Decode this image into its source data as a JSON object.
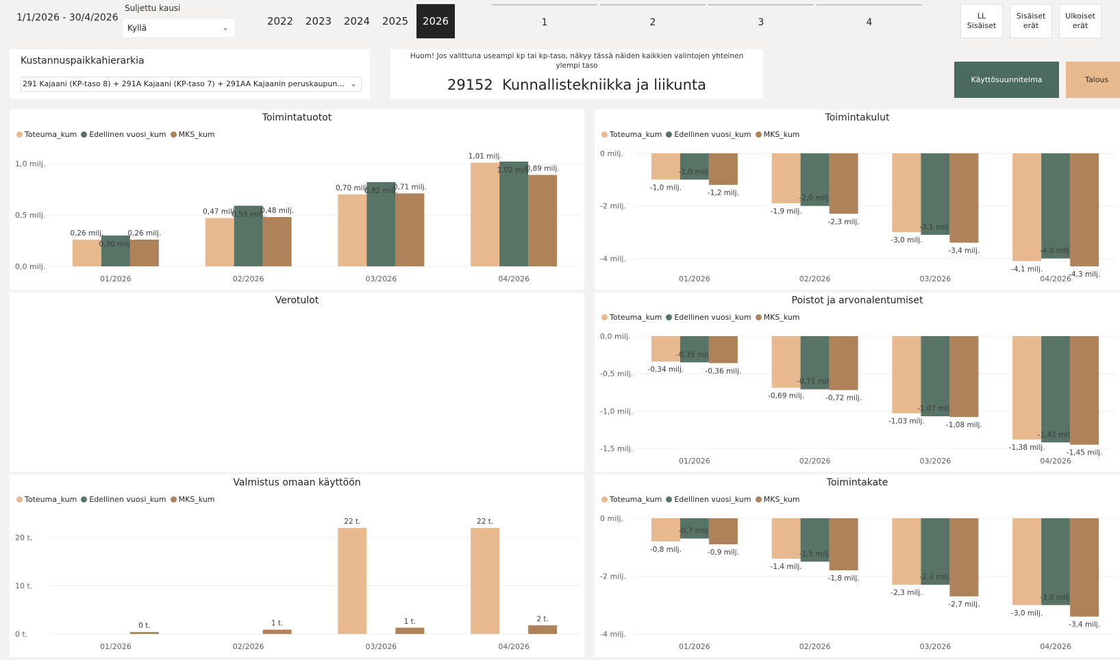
{
  "filters": {
    "date_range": "1/1/2026 - 30/4/2026",
    "closed_period_label": "Suljettu kausi",
    "closed_period_value": "Kyllä",
    "years": [
      {
        "label": "2022",
        "active": false
      },
      {
        "label": "2023",
        "active": false
      },
      {
        "label": "2024",
        "active": false
      },
      {
        "label": "2025",
        "active": false
      },
      {
        "label": "2026",
        "active": true
      }
    ],
    "quarters": [
      "1",
      "2",
      "3",
      "4"
    ],
    "entry_buttons": [
      {
        "l1": "LL",
        "l2": "Sisäiset"
      },
      {
        "l1": "Sisäiset",
        "l2": "erät"
      },
      {
        "l1": "Ulkoiset",
        "l2": "erät"
      }
    ]
  },
  "hierarchy": {
    "title": "Kustannuspaikkahierarkia",
    "value": "291 Kajaani (KP-taso 8) + 291A Kajaani (KP-taso 7) + 291AA Kajaanin peruskaupun..."
  },
  "notice": {
    "text": "Huom! Jos valittuna useampi kp tai kp-taso, näkyy tässä näiden kaikkien valintojen yhteinen ylempi taso",
    "unit_code": "29152",
    "unit_name": "Kunnallistekniikka ja liikunta"
  },
  "nav_buttons": {
    "primary": "Käyttösuunnitelma",
    "secondary": "Talous"
  },
  "legend": [
    {
      "name": "Toteuma_kum",
      "color": "#e8b98e"
    },
    {
      "name": "Edellinen vuosi_kum",
      "color": "#587466"
    },
    {
      "name": "MKS_kum",
      "color": "#b0825a"
    }
  ],
  "panels": {
    "toimintatuotot": "Toimintatuotot",
    "verotulot": "Verotulot",
    "valmistus": "Valmistus omaan käyttöön",
    "toimintakulut": "Toimintakulut",
    "poistot": "Poistot ja arvonalentumiset",
    "toimintakate": "Toimintakate"
  },
  "chart_data": [
    {
      "id": "toimintatuotot",
      "type": "bar",
      "title": "Toimintatuotot",
      "categories": [
        "01/2026",
        "02/2026",
        "03/2026",
        "04/2026"
      ],
      "ylim": [
        0,
        1.1
      ],
      "yticks": [
        {
          "v": 0,
          "label": "0,0 milj."
        },
        {
          "v": 0.5,
          "label": "0,5 milj."
        },
        {
          "v": 1.0,
          "label": "1,0 milj."
        }
      ],
      "series": [
        {
          "name": "Toteuma_kum",
          "values": [
            0.26,
            0.47,
            0.7,
            1.01
          ],
          "labels": [
            "0,26 milj.",
            "0,47 milj.",
            "0,70 milj.",
            "1,01 milj."
          ]
        },
        {
          "name": "Edellinen vuosi_kum",
          "values": [
            0.3,
            0.59,
            0.82,
            1.02
          ],
          "labels": [
            "0,30 milj.",
            "0,59 milj.",
            "0,82 milj.",
            "1,02 milj."
          ]
        },
        {
          "name": "MKS_kum",
          "values": [
            0.26,
            0.48,
            0.71,
            0.89
          ],
          "labels": [
            "0,26 milj.",
            "0,48 milj.",
            "0,71 milj.",
            "0,89 milj."
          ]
        }
      ]
    },
    {
      "id": "toimintakulut",
      "type": "bar",
      "title": "Toimintakulut",
      "categories": [
        "01/2026",
        "02/2026",
        "03/2026",
        "04/2026"
      ],
      "ylim": [
        0,
        -4.3
      ],
      "yticks": [
        {
          "v": 0,
          "label": "0 milj."
        },
        {
          "v": -2,
          "label": "-2 milj."
        },
        {
          "v": -4,
          "label": "-4 milj."
        }
      ],
      "series": [
        {
          "name": "Toteuma_kum",
          "values": [
            -1.0,
            -1.9,
            -3.0,
            -4.1
          ],
          "labels": [
            "-1,0 milj.",
            "-1,9 milj.",
            "-3,0 milj.",
            "-4,1 milj."
          ]
        },
        {
          "name": "Edellinen vuosi_kum",
          "values": [
            -1.0,
            -2.0,
            -3.1,
            -4.0
          ],
          "labels": [
            "-1,0 milj.",
            "-2,0 milj.",
            "-3,1 milj.",
            "-4,0 milj."
          ]
        },
        {
          "name": "MKS_kum",
          "values": [
            -1.2,
            -2.3,
            -3.4,
            -4.3
          ],
          "labels": [
            "-1,2 milj.",
            "-2,3 milj.",
            "-3,4 milj.",
            "-4,3 milj."
          ]
        }
      ]
    },
    {
      "id": "poistot",
      "type": "bar",
      "title": "Poistot ja arvonalentumiset",
      "categories": [
        "01/2026",
        "02/2026",
        "03/2026",
        "04/2026"
      ],
      "ylim": [
        0,
        -1.5
      ],
      "yticks": [
        {
          "v": 0,
          "label": "0,0 milj."
        },
        {
          "v": -0.5,
          "label": "-0,5 milj."
        },
        {
          "v": -1.0,
          "label": "-1,0 milj."
        },
        {
          "v": -1.5,
          "label": "-1,5 milj."
        }
      ],
      "series": [
        {
          "name": "Toteuma_kum",
          "values": [
            -0.34,
            -0.69,
            -1.03,
            -1.38
          ],
          "labels": [
            "-0,34 milj.",
            "-0,69 milj.",
            "-1,03 milj.",
            "-1,38 milj."
          ]
        },
        {
          "name": "Edellinen vuosi_kum",
          "values": [
            -0.35,
            -0.71,
            -1.07,
            -1.42
          ],
          "labels": [
            "-0,35 milj.",
            "-0,71 milj.",
            "-1,07 milj.",
            "-1,42 milj."
          ]
        },
        {
          "name": "MKS_kum",
          "values": [
            -0.36,
            -0.72,
            -1.08,
            -1.45
          ],
          "labels": [
            "-0,36 milj.",
            "-0,72 milj.",
            "-1,08 milj.",
            "-1,45 milj."
          ]
        }
      ]
    },
    {
      "id": "valmistus",
      "type": "bar",
      "title": "Valmistus omaan käyttöön",
      "categories": [
        "01/2026",
        "02/2026",
        "03/2026",
        "04/2026"
      ],
      "ylim": [
        0,
        24
      ],
      "yticks": [
        {
          "v": 0,
          "label": "0 t."
        },
        {
          "v": 10,
          "label": "10 t."
        },
        {
          "v": 20,
          "label": "20 t."
        }
      ],
      "series": [
        {
          "name": "Toteuma_kum",
          "values": [
            null,
            null,
            22,
            22
          ],
          "labels": [
            "",
            "",
            "22 t.",
            "22 t."
          ]
        },
        {
          "name": "Edellinen vuosi_kum",
          "values": [
            null,
            null,
            null,
            null
          ],
          "labels": [
            "",
            "",
            "",
            ""
          ]
        },
        {
          "name": "MKS_kum",
          "values": [
            0.4,
            0.9,
            1.3,
            1.8
          ],
          "labels": [
            "0 t.",
            "1 t.",
            "1 t.",
            "2 t."
          ]
        }
      ]
    },
    {
      "id": "toimintakate",
      "type": "bar",
      "title": "Toimintakate",
      "categories": [
        "01/2026",
        "02/2026",
        "03/2026",
        "04/2026"
      ],
      "ylim": [
        0,
        -4
      ],
      "yticks": [
        {
          "v": 0,
          "label": "0 milj."
        },
        {
          "v": -2,
          "label": "-2 milj."
        },
        {
          "v": -4,
          "label": "-4 milj."
        }
      ],
      "series": [
        {
          "name": "Toteuma_kum",
          "values": [
            -0.8,
            -1.4,
            -2.3,
            -3.0
          ],
          "labels": [
            "-0,8 milj.",
            "-1,4 milj.",
            "-2,3 milj.",
            "-3,0 milj."
          ]
        },
        {
          "name": "Edellinen vuosi_kum",
          "values": [
            -0.7,
            -1.5,
            -2.3,
            -3.0
          ],
          "labels": [
            "-0,7 milj.",
            "-1,5 milj.",
            "-2,3 milj.",
            "-3,0 milj."
          ]
        },
        {
          "name": "MKS_kum",
          "values": [
            -0.9,
            -1.8,
            -2.7,
            -3.4
          ],
          "labels": [
            "-0,9 milj.",
            "-1,8 milj.",
            "-2,7 milj.",
            "-3,4 milj."
          ]
        }
      ]
    }
  ]
}
